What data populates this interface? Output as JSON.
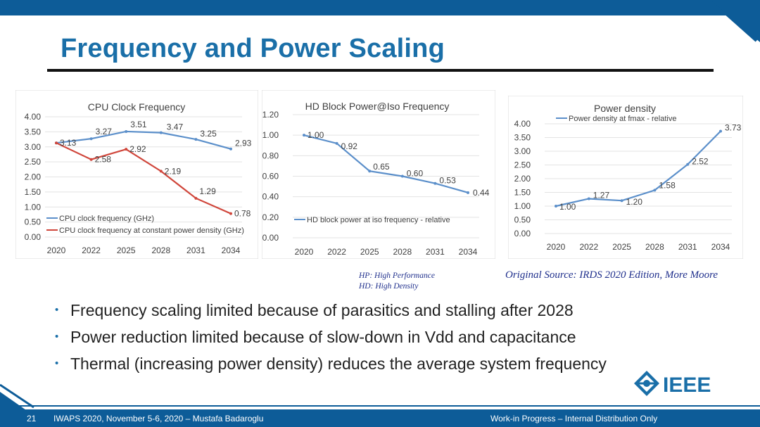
{
  "slide": {
    "title": "Frequency and Power Scaling",
    "note_hp": "HP: High Performance",
    "note_hd": "HD: High Density",
    "source": "Original Source: IRDS 2020 Edition, More Moore",
    "bullets": [
      "Frequency scaling limited because of parasitics and stalling after 2028",
      "Power reduction limited because of slow-down in Vdd and capacitance",
      "Thermal (increasing power density) reduces the average system frequency"
    ],
    "logo_text": "IEEE",
    "footer": {
      "page_number": "21",
      "event": "IWAPS 2020, November 5-6, 2020 – Mustafa Badaroglu",
      "classification": "Work-in Progress – Internal Distribution Only"
    },
    "colors": {
      "accent": "#1a6fa8",
      "band": "#0d5c98",
      "series_blue": "#5b8fca",
      "series_red": "#d0463b"
    }
  },
  "chart_data": [
    {
      "type": "line",
      "title": "CPU Clock Frequency",
      "categories": [
        "2020",
        "2022",
        "2025",
        "2028",
        "2031",
        "2034"
      ],
      "yticks": [
        "0.00",
        "0.50",
        "1.00",
        "1.50",
        "2.00",
        "2.50",
        "3.00",
        "3.50",
        "4.00"
      ],
      "ylim": [
        0,
        4
      ],
      "legend": "bottom-left",
      "series": [
        {
          "name": "CPU clock frequency (GHz)",
          "values": [
            3.13,
            3.27,
            3.51,
            3.47,
            3.25,
            2.93
          ],
          "labels": [
            "",
            "3.27",
            "3.51",
            "3.47",
            "3.25",
            "2.93"
          ],
          "color": "#5b8fca"
        },
        {
          "name": "CPU clock frequency at constant power density (GHz)",
          "values": [
            3.13,
            2.58,
            2.92,
            2.19,
            1.29,
            0.78
          ],
          "labels": [
            "3.13",
            "2.58",
            "2.92",
            "2.19",
            "1.29",
            "0.78"
          ],
          "color": "#d0463b"
        }
      ]
    },
    {
      "type": "line",
      "title": "HD Block Power@Iso Frequency",
      "categories": [
        "2020",
        "2022",
        "2025",
        "2028",
        "2031",
        "2034"
      ],
      "yticks": [
        "0.00",
        "0.20",
        "0.40",
        "0.60",
        "0.80",
        "1.00",
        "1.20"
      ],
      "ylim": [
        0,
        1.2
      ],
      "legend": "bottom-left",
      "series": [
        {
          "name": "HD block power at iso frequency - relative",
          "values": [
            1.0,
            0.92,
            0.65,
            0.6,
            0.53,
            0.44
          ],
          "labels": [
            "1.00",
            "0.92",
            "0.65",
            "0.60",
            "0.53",
            "0.44"
          ],
          "color": "#5b8fca"
        }
      ]
    },
    {
      "type": "line",
      "title": "Power density",
      "categories": [
        "2020",
        "2022",
        "2025",
        "2028",
        "2031",
        "2034"
      ],
      "yticks": [
        "0.00",
        "0.50",
        "1.00",
        "1.50",
        "2.00",
        "2.50",
        "3.00",
        "3.50",
        "4.00"
      ],
      "ylim": [
        0,
        4
      ],
      "legend": "top-left",
      "series": [
        {
          "name": "Power density at fmax - relative",
          "values": [
            1.0,
            1.27,
            1.2,
            1.58,
            2.52,
            3.73
          ],
          "labels": [
            "1.00",
            "1.27",
            "1.20",
            "1.58",
            "2.52",
            "3.73"
          ],
          "color": "#5b8fca"
        }
      ]
    }
  ]
}
